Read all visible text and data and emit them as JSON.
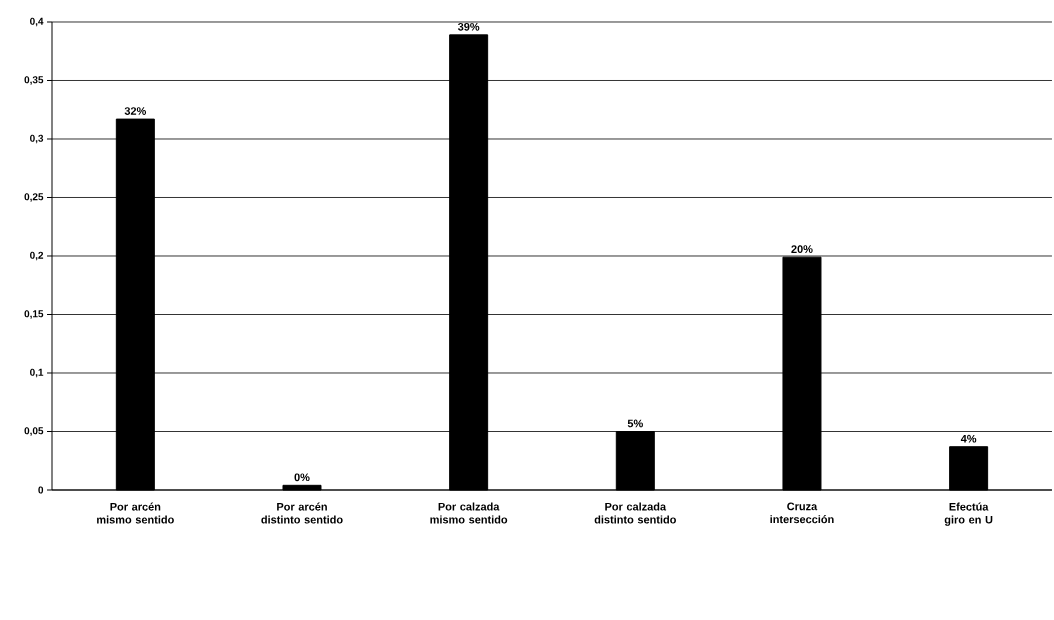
{
  "chart_data": {
    "type": "bar",
    "categories": [
      "Por arcén mismo sentido",
      "Por arcén distinto sentido",
      "Por calzada mismo sentido",
      "Por calzada distinto sentido",
      "Cruza intersección",
      "Efectúa giro en U"
    ],
    "values": [
      0.317,
      0.004,
      0.389,
      0.05,
      0.199,
      0.037
    ],
    "value_labels": [
      "32%",
      "0%",
      "39%",
      "5%",
      "20%",
      "4%"
    ],
    "color": "#000000",
    "ylim": [
      0,
      0.4
    ],
    "yticks": [
      0,
      {
        "value": 0.05,
        "label": "0,05"
      },
      {
        "value": 0.1,
        "label": "0,1"
      },
      {
        "value": 0.15,
        "label": "0,15"
      },
      {
        "value": 0.2,
        "label": "0,2"
      },
      {
        "value": 0.25,
        "label": "0,25"
      },
      {
        "value": 0.3,
        "label": "0,3"
      },
      {
        "value": 0.35,
        "label": "0,35"
      },
      {
        "value": 0.4,
        "label": "0,4"
      }
    ],
    "grid": "y"
  }
}
